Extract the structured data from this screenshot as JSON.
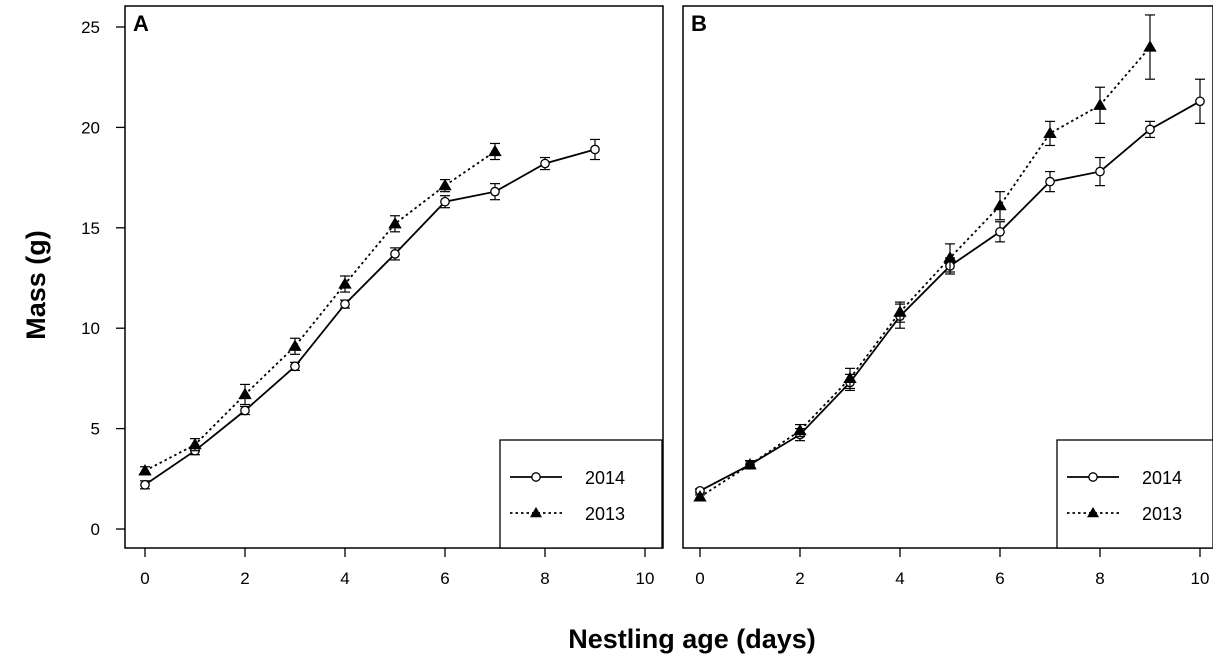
{
  "chart_data": {
    "type": "line",
    "xlabel": "Nestling age (days)",
    "ylabel": "Mass (g)",
    "xlim": [
      0,
      10
    ],
    "ylim": [
      0,
      25
    ],
    "xticks": [
      0,
      2,
      4,
      6,
      8,
      10
    ],
    "yticks": [
      0,
      5,
      10,
      15,
      20,
      25
    ],
    "grid": false,
    "legend_position": "bottom-right",
    "panels": [
      {
        "label": "A",
        "series": [
          {
            "name": "2014",
            "line_style": "solid",
            "marker": "open-circle",
            "x": [
              0,
              1,
              2,
              3,
              4,
              5,
              6,
              7,
              8,
              9
            ],
            "y": [
              2.2,
              3.9,
              5.9,
              8.1,
              11.2,
              13.7,
              16.3,
              16.8,
              18.2,
              18.9
            ],
            "err": [
              0.2,
              0.2,
              0.2,
              0.2,
              0.2,
              0.3,
              0.3,
              0.4,
              0.3,
              0.5
            ]
          },
          {
            "name": "2013",
            "line_style": "dotted",
            "marker": "filled-triangle",
            "x": [
              0,
              1,
              2,
              3,
              4,
              5,
              6,
              7
            ],
            "y": [
              2.9,
              4.2,
              6.7,
              9.1,
              12.2,
              15.2,
              17.1,
              18.8
            ],
            "err": [
              0.2,
              0.3,
              0.5,
              0.4,
              0.4,
              0.4,
              0.3,
              0.4
            ]
          }
        ]
      },
      {
        "label": "B",
        "series": [
          {
            "name": "2014",
            "line_style": "solid",
            "marker": "open-circle",
            "x": [
              0,
              1,
              2,
              3,
              4,
              5,
              6,
              7,
              8,
              9,
              10
            ],
            "y": [
              1.9,
              3.2,
              4.7,
              7.3,
              10.6,
              13.1,
              14.8,
              17.3,
              17.8,
              19.9,
              21.3
            ],
            "err": [
              0.1,
              0.2,
              0.3,
              0.4,
              0.6,
              0.4,
              0.5,
              0.5,
              0.7,
              0.4,
              1.1
            ]
          },
          {
            "name": "2013",
            "line_style": "dotted",
            "marker": "filled-triangle",
            "x": [
              0,
              1,
              2,
              3,
              4,
              5,
              6,
              7,
              8,
              9
            ],
            "y": [
              1.6,
              3.2,
              4.9,
              7.5,
              10.8,
              13.5,
              16.1,
              19.7,
              21.1,
              24.0
            ],
            "err": [
              0.1,
              0.2,
              0.3,
              0.5,
              0.5,
              0.7,
              0.7,
              0.6,
              0.9,
              1.6
            ]
          }
        ]
      }
    ]
  }
}
